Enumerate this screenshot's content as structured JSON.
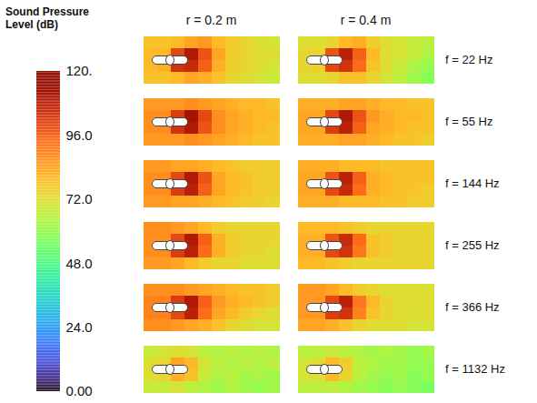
{
  "chart_data": {
    "type": "heatmap",
    "colorbar": {
      "label": "Sound Pressure Level (dB)",
      "range": [
        0,
        120
      ],
      "ticks": [
        {
          "value": 0,
          "label": "0.00"
        },
        {
          "value": 24,
          "label": "24.0"
        },
        {
          "value": 48,
          "label": "48.0"
        },
        {
          "value": 72,
          "label": "72.0"
        },
        {
          "value": 96,
          "label": "96.0"
        },
        {
          "value": 120,
          "label": "120."
        }
      ]
    },
    "columns": [
      "r = 0.2 m",
      "r = 0.4 m"
    ],
    "rows": [
      "f = 22 Hz",
      "f = 55 Hz",
      "f = 144 Hz",
      "f = 255 Hz",
      "f = 366 Hz",
      "f = 1132 Hz"
    ],
    "panels": [
      {
        "column": "r = 0.2 m",
        "row": "f = 22 Hz",
        "cells": [
          [
            78,
            78,
            80,
            84,
            86,
            80,
            76,
            74,
            72,
            70
          ],
          [
            80,
            80,
            100,
            110,
            98,
            84,
            76,
            74,
            72,
            72
          ],
          [
            80,
            82,
            104,
            106,
            96,
            82,
            76,
            74,
            72,
            70
          ],
          [
            78,
            78,
            80,
            84,
            82,
            78,
            74,
            72,
            70,
            68
          ]
        ]
      },
      {
        "column": "r = 0.4 m",
        "row": "f = 22 Hz",
        "cells": [
          [
            72,
            72,
            74,
            80,
            82,
            76,
            72,
            70,
            68,
            66
          ],
          [
            74,
            74,
            98,
            108,
            96,
            80,
            72,
            70,
            68,
            64
          ],
          [
            74,
            76,
            100,
            104,
            94,
            78,
            72,
            68,
            64,
            60
          ],
          [
            72,
            72,
            74,
            78,
            78,
            74,
            70,
            66,
            62,
            58
          ]
        ]
      },
      {
        "column": "r = 0.2 m",
        "row": "f = 55 Hz",
        "cells": [
          [
            86,
            86,
            86,
            88,
            86,
            84,
            82,
            80,
            80,
            78
          ],
          [
            88,
            88,
            102,
            112,
            100,
            88,
            84,
            82,
            80,
            80
          ],
          [
            88,
            88,
            104,
            110,
            98,
            88,
            84,
            82,
            80,
            78
          ],
          [
            86,
            86,
            86,
            88,
            86,
            84,
            82,
            80,
            78,
            78
          ]
        ]
      },
      {
        "column": "r = 0.4 m",
        "row": "f = 55 Hz",
        "cells": [
          [
            82,
            82,
            82,
            84,
            84,
            82,
            80,
            80,
            78,
            78
          ],
          [
            84,
            84,
            100,
            110,
            98,
            86,
            82,
            80,
            80,
            78
          ],
          [
            84,
            84,
            102,
            108,
            96,
            84,
            82,
            80,
            78,
            78
          ],
          [
            82,
            82,
            82,
            84,
            84,
            82,
            80,
            78,
            78,
            76
          ]
        ]
      },
      {
        "column": "r = 0.2 m",
        "row": "f = 144 Hz",
        "cells": [
          [
            86,
            86,
            84,
            84,
            82,
            80,
            78,
            76,
            76,
            76
          ],
          [
            88,
            88,
            100,
            110,
            98,
            84,
            80,
            78,
            76,
            76
          ],
          [
            88,
            88,
            102,
            108,
            96,
            84,
            80,
            78,
            76,
            76
          ],
          [
            86,
            86,
            84,
            84,
            82,
            80,
            78,
            76,
            76,
            74
          ]
        ]
      },
      {
        "column": "r = 0.4 m",
        "row": "f = 144 Hz",
        "cells": [
          [
            82,
            82,
            82,
            80,
            80,
            80,
            78,
            78,
            78,
            78
          ],
          [
            84,
            84,
            98,
            108,
            96,
            82,
            80,
            78,
            78,
            78
          ],
          [
            84,
            84,
            100,
            106,
            94,
            82,
            80,
            78,
            78,
            76
          ],
          [
            82,
            82,
            82,
            80,
            80,
            80,
            78,
            78,
            76,
            76
          ]
        ]
      },
      {
        "column": "r = 0.2 m",
        "row": "f = 255 Hz",
        "cells": [
          [
            88,
            88,
            86,
            84,
            80,
            76,
            74,
            74,
            74,
            74
          ],
          [
            88,
            88,
            100,
            110,
            96,
            82,
            76,
            74,
            74,
            74
          ],
          [
            88,
            88,
            102,
            108,
            94,
            82,
            76,
            74,
            74,
            72
          ],
          [
            86,
            86,
            84,
            80,
            76,
            74,
            74,
            72,
            72,
            72
          ]
        ]
      },
      {
        "column": "r = 0.4 m",
        "row": "f = 255 Hz",
        "cells": [
          [
            80,
            80,
            80,
            78,
            76,
            74,
            74,
            74,
            74,
            74
          ],
          [
            82,
            82,
            98,
            106,
            94,
            78,
            76,
            74,
            74,
            74
          ],
          [
            82,
            82,
            100,
            104,
            92,
            78,
            76,
            74,
            74,
            74
          ],
          [
            80,
            80,
            78,
            76,
            74,
            74,
            74,
            74,
            74,
            74
          ]
        ]
      },
      {
        "column": "r = 0.2 m",
        "row": "f = 366 Hz",
        "cells": [
          [
            88,
            88,
            88,
            86,
            84,
            82,
            80,
            78,
            78,
            76
          ],
          [
            90,
            90,
            102,
            110,
            96,
            86,
            82,
            80,
            78,
            76
          ],
          [
            90,
            90,
            100,
            108,
            94,
            84,
            80,
            76,
            74,
            72
          ],
          [
            88,
            88,
            86,
            84,
            82,
            78,
            74,
            72,
            70,
            70
          ]
        ]
      },
      {
        "column": "r = 0.4 m",
        "row": "f = 366 Hz",
        "cells": [
          [
            86,
            86,
            84,
            80,
            76,
            74,
            72,
            72,
            72,
            72
          ],
          [
            86,
            86,
            100,
            108,
            92,
            80,
            74,
            72,
            72,
            72
          ],
          [
            86,
            86,
            102,
            104,
            90,
            78,
            74,
            72,
            72,
            72
          ],
          [
            84,
            84,
            82,
            78,
            74,
            72,
            72,
            72,
            70,
            70
          ]
        ]
      },
      {
        "column": "r = 0.2 m",
        "row": "f = 1132 Hz",
        "cells": [
          [
            68,
            70,
            72,
            70,
            66,
            64,
            66,
            64,
            66,
            64
          ],
          [
            72,
            74,
            84,
            80,
            70,
            66,
            64,
            66,
            64,
            66
          ],
          [
            72,
            74,
            82,
            78,
            68,
            64,
            66,
            62,
            64,
            62
          ],
          [
            68,
            68,
            70,
            66,
            64,
            62,
            64,
            62,
            60,
            62
          ]
        ]
      },
      {
        "column": "r = 0.4 m",
        "row": "f = 1132 Hz",
        "cells": [
          [
            66,
            66,
            68,
            66,
            64,
            62,
            64,
            62,
            60,
            62
          ],
          [
            70,
            72,
            80,
            76,
            66,
            64,
            62,
            62,
            60,
            60
          ],
          [
            70,
            72,
            80,
            74,
            66,
            62,
            60,
            62,
            58,
            60
          ],
          [
            66,
            66,
            66,
            64,
            62,
            60,
            58,
            60,
            58,
            56
          ]
        ]
      }
    ]
  }
}
